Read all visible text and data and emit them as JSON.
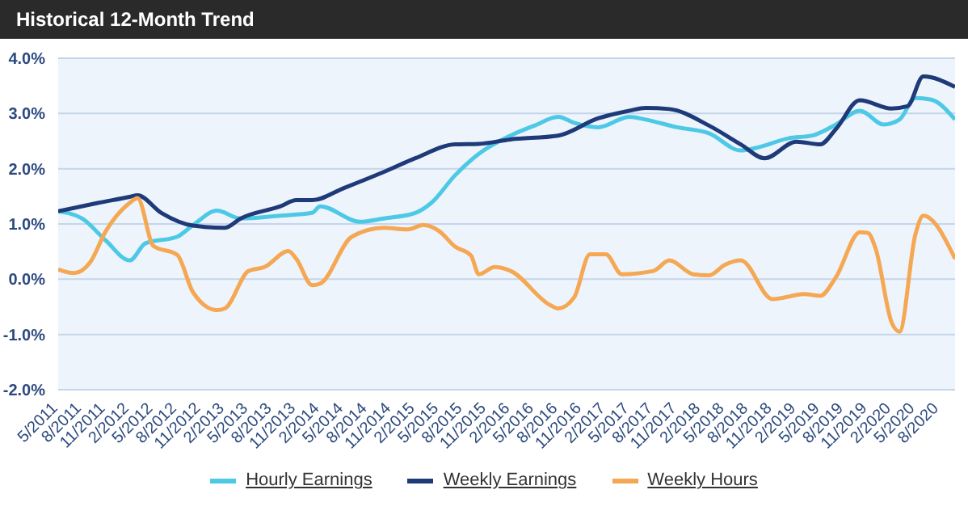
{
  "chart_data": {
    "type": "line",
    "title": "Historical 12-Month Trend",
    "xlim": [
      "2011-05",
      "2020-10"
    ],
    "xticks": [
      {
        "value": "2011-05",
        "label": "5/2011"
      },
      {
        "value": "2011-08",
        "label": "8/2011"
      },
      {
        "value": "2011-11",
        "label": "11/2011"
      },
      {
        "value": "2012-02",
        "label": "2/2012"
      },
      {
        "value": "2012-05",
        "label": "5/2012"
      },
      {
        "value": "2012-08",
        "label": "8/2012"
      },
      {
        "value": "2012-11",
        "label": "11/2012"
      },
      {
        "value": "2013-02",
        "label": "2/2013"
      },
      {
        "value": "2013-05",
        "label": "5/2013"
      },
      {
        "value": "2013-08",
        "label": "8/2013"
      },
      {
        "value": "2013-11",
        "label": "11/2013"
      },
      {
        "value": "2014-02",
        "label": "2/2014"
      },
      {
        "value": "2014-05",
        "label": "5/2014"
      },
      {
        "value": "2014-08",
        "label": "8/2014"
      },
      {
        "value": "2014-11",
        "label": "11/2014"
      },
      {
        "value": "2015-02",
        "label": "2/2015"
      },
      {
        "value": "2015-05",
        "label": "5/2015"
      },
      {
        "value": "2015-08",
        "label": "8/2015"
      },
      {
        "value": "2015-11",
        "label": "11/2015"
      },
      {
        "value": "2016-02",
        "label": "2/2016"
      },
      {
        "value": "2016-05",
        "label": "5/2016"
      },
      {
        "value": "2016-08",
        "label": "8/2016"
      },
      {
        "value": "2016-11",
        "label": "11/2016"
      },
      {
        "value": "2017-02",
        "label": "2/2017"
      },
      {
        "value": "2017-05",
        "label": "5/2017"
      },
      {
        "value": "2017-08",
        "label": "8/2017"
      },
      {
        "value": "2017-11",
        "label": "11/2017"
      },
      {
        "value": "2018-02",
        "label": "2/2018"
      },
      {
        "value": "2018-05",
        "label": "5/2018"
      },
      {
        "value": "2018-08",
        "label": "8/2018"
      },
      {
        "value": "2018-11",
        "label": "11/2018"
      },
      {
        "value": "2019-02",
        "label": "2/2019"
      },
      {
        "value": "2019-05",
        "label": "5/2019"
      },
      {
        "value": "2019-08",
        "label": "8/2019"
      },
      {
        "value": "2019-11",
        "label": "11/2019"
      },
      {
        "value": "2020-02",
        "label": "2/2020"
      },
      {
        "value": "2020-05",
        "label": "5/2020"
      },
      {
        "value": "2020-08",
        "label": "8/2020"
      }
    ],
    "ylim": [
      -2,
      4
    ],
    "yticks": [
      {
        "value": -2,
        "label": "-2.0%"
      },
      {
        "value": -1,
        "label": "-1.0%"
      },
      {
        "value": 0,
        "label": "0.0%"
      },
      {
        "value": 1,
        "label": "1.0%"
      },
      {
        "value": 2,
        "label": "2.0%"
      },
      {
        "value": 3,
        "label": "3.0%"
      },
      {
        "value": 4,
        "label": "4.0%"
      }
    ],
    "grid": "y",
    "legend": "bottom",
    "series": [
      {
        "name": "Hourly Earnings",
        "color": "#4dc9e6",
        "x": [
          "2011-05",
          "2011-08",
          "2011-11",
          "2012-02",
          "2012-04",
          "2012-08",
          "2012-10",
          "2013-01",
          "2013-04",
          "2013-09",
          "2014-01",
          "2014-02",
          "2014-07",
          "2014-10",
          "2015-02",
          "2015-04",
          "2015-07",
          "2015-10",
          "2016-02",
          "2016-05",
          "2016-08",
          "2016-10",
          "2017-01",
          "2017-05",
          "2017-07",
          "2017-11",
          "2018-03",
          "2018-07",
          "2018-09",
          "2019-01",
          "2019-04",
          "2019-07",
          "2019-10",
          "2020-01",
          "2020-03",
          "2020-05",
          "2020-07",
          "2020-10"
        ],
        "values": [
          1.23,
          1.1,
          0.7,
          0.34,
          0.65,
          0.77,
          0.98,
          1.24,
          1.1,
          1.15,
          1.2,
          1.32,
          1.04,
          1.1,
          1.2,
          1.38,
          1.88,
          2.27,
          2.6,
          2.78,
          2.94,
          2.83,
          2.75,
          2.94,
          2.89,
          2.75,
          2.64,
          2.33,
          2.38,
          2.55,
          2.6,
          2.8,
          3.05,
          2.8,
          2.89,
          3.28,
          3.25,
          2.89
        ]
      },
      {
        "name": "Weekly Earnings",
        "color": "#1f3a78",
        "x": [
          "2011-05",
          "2011-10",
          "2012-02",
          "2012-03",
          "2012-06",
          "2012-10",
          "2013-02",
          "2013-04",
          "2013-09",
          "2013-11",
          "2014-01",
          "2014-05",
          "2014-10",
          "2015-02",
          "2015-07",
          "2015-10",
          "2016-02",
          "2016-08",
          "2017-01",
          "2017-05",
          "2017-07",
          "2017-10",
          "2018-03",
          "2018-07",
          "2018-10",
          "2019-02",
          "2019-05",
          "2019-07",
          "2019-10",
          "2020-02",
          "2020-04",
          "2020-06",
          "2020-10"
        ],
        "values": [
          1.23,
          1.38,
          1.49,
          1.52,
          1.2,
          0.97,
          0.93,
          1.1,
          1.32,
          1.43,
          1.43,
          1.65,
          1.94,
          2.19,
          2.44,
          2.45,
          2.53,
          2.6,
          2.91,
          3.05,
          3.1,
          3.08,
          2.78,
          2.44,
          2.19,
          2.49,
          2.44,
          2.72,
          3.24,
          3.09,
          3.13,
          3.67,
          3.48
        ]
      },
      {
        "name": "Weekly Hours",
        "color": "#f5a854",
        "x": [
          "2011-05",
          "2011-07",
          "2011-09",
          "2011-11",
          "2012-02",
          "2012-03",
          "2012-05",
          "2012-08",
          "2012-10",
          "2013-01",
          "2013-02",
          "2013-05",
          "2013-07",
          "2013-10",
          "2013-11",
          "2014-01",
          "2014-02",
          "2014-06",
          "2014-10",
          "2015-01",
          "2015-03",
          "2015-05",
          "2015-07",
          "2015-09",
          "2015-10",
          "2015-12",
          "2016-02",
          "2016-07",
          "2016-08",
          "2016-10",
          "2016-12",
          "2017-02",
          "2017-04",
          "2017-08",
          "2017-10",
          "2018-01",
          "2018-03",
          "2018-05",
          "2018-07",
          "2018-11",
          "2019-03",
          "2019-05",
          "2019-07",
          "2019-10",
          "2019-11",
          "2019-12",
          "2020-02",
          "2020-03",
          "2020-05",
          "2020-06",
          "2020-10"
        ],
        "values": [
          0.18,
          0.11,
          0.3,
          0.87,
          1.38,
          1.47,
          0.6,
          0.44,
          -0.24,
          -0.56,
          -0.53,
          0.15,
          0.22,
          0.51,
          0.37,
          -0.11,
          -0.08,
          0.77,
          0.93,
          0.9,
          0.98,
          0.87,
          0.59,
          0.43,
          0.09,
          0.22,
          0.15,
          -0.47,
          -0.53,
          -0.33,
          0.45,
          0.45,
          0.09,
          0.15,
          0.34,
          0.09,
          0.07,
          0.26,
          0.34,
          -0.36,
          -0.27,
          -0.3,
          0.04,
          0.85,
          0.84,
          0.55,
          -0.78,
          -0.95,
          0.81,
          1.15,
          0.37
        ]
      }
    ]
  }
}
